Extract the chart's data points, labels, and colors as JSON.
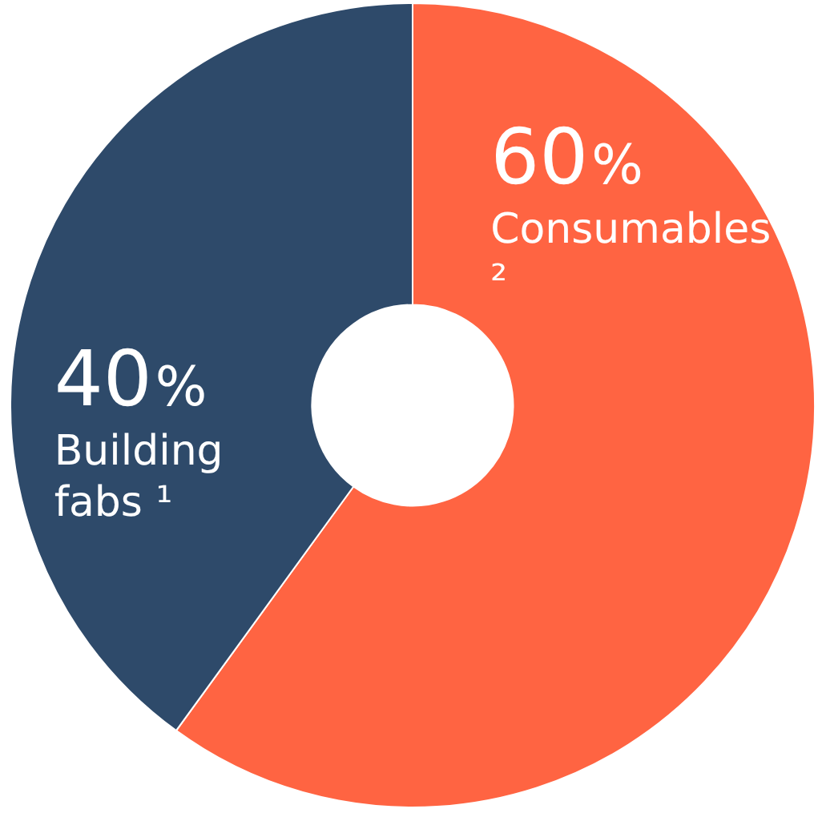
{
  "chart_data": {
    "type": "donut",
    "categories": [
      "Consumables ²",
      "Building fabs ¹"
    ],
    "values": [
      60,
      40
    ],
    "colors": [
      "#ff6442",
      "#2e4a6a"
    ],
    "value_labels": [
      "60%",
      "40%"
    ],
    "legend": false
  }
}
